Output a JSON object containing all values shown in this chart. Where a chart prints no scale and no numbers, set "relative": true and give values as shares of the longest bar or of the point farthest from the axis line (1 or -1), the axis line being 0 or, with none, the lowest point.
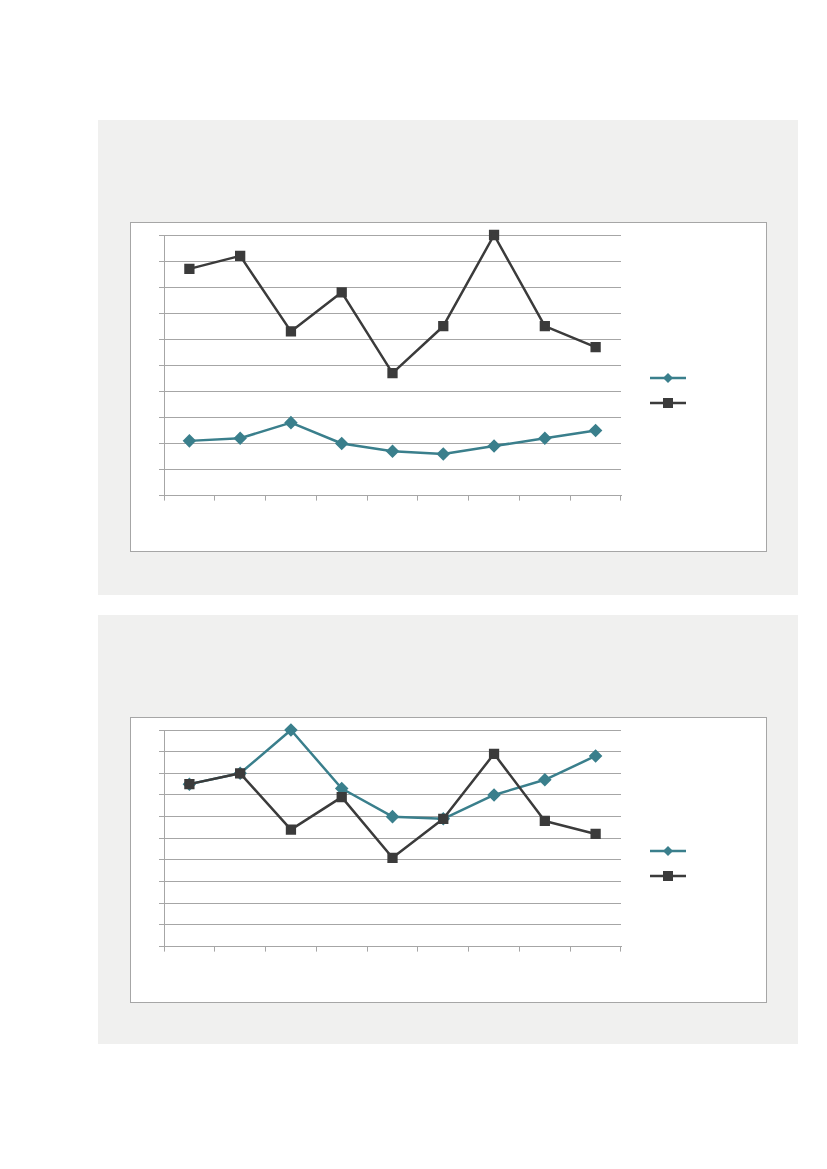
{
  "chart_data": [
    {
      "type": "line",
      "relative": true,
      "categories": [
        null,
        null,
        null,
        null,
        null,
        null,
        null,
        null,
        null
      ],
      "grid": "y",
      "series": [
        {
          "color": "#3a7f8c",
          "marker": "diamond",
          "values": [
            0.21,
            0.22,
            0.28,
            0.2,
            0.17,
            0.16,
            0.19,
            0.22,
            0.25
          ]
        },
        {
          "color": "#3b3b3b",
          "marker": "square",
          "values": [
            0.87,
            0.92,
            0.63,
            0.78,
            0.47,
            0.65,
            1,
            0.65,
            0.57
          ]
        }
      ]
    },
    {
      "type": "line",
      "relative": true,
      "categories": [
        null,
        null,
        null,
        null,
        null,
        null,
        null,
        null,
        null
      ],
      "grid": "y",
      "series": [
        {
          "color": "#3a7f8c",
          "marker": "diamond",
          "values": [
            0.75,
            0.8,
            1,
            0.73,
            0.6,
            0.59,
            0.7,
            0.77,
            0.88
          ]
        },
        {
          "color": "#3b3b3b",
          "marker": "square",
          "values": [
            0.75,
            0.8,
            0.54,
            0.69,
            0.41,
            0.59,
            0.89,
            0.58,
            0.52
          ]
        }
      ]
    }
  ]
}
